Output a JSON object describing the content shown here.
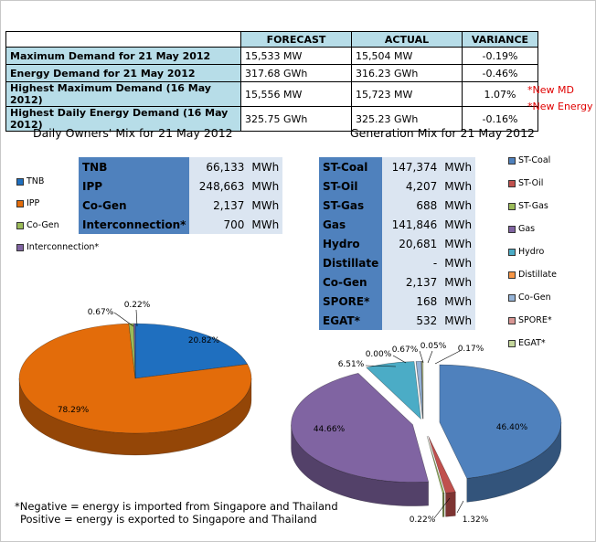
{
  "summary": {
    "headers": [
      "",
      "FORECAST",
      "ACTUAL",
      "VARIANCE"
    ],
    "rows": [
      {
        "label": "Maximum Demand for 21 May 2012",
        "forecast": "15,533  MW",
        "actual": "15,504  MW",
        "variance": "-0.19%",
        "note": ""
      },
      {
        "label": "Energy Demand for 21 May 2012",
        "forecast": "317.68  GWh",
        "actual": "316.23  GWh",
        "variance": "-0.46%",
        "note": ""
      },
      {
        "label": "Highest Maximum Demand (16 May 2012)",
        "forecast": "15,556  MW",
        "actual": "15,723  MW",
        "variance": "1.07%",
        "note": "*New MD"
      },
      {
        "label": "Highest Daily Energy Demand (16 May 2012)",
        "forecast": "325.75  GWh",
        "actual": "325.23  GWh",
        "variance": "-0.16%",
        "note": "*New Energy"
      }
    ]
  },
  "chart_data": [
    {
      "type": "pie",
      "title": "Daily Owners' Mix for 21 May 2012",
      "table": [
        {
          "name": "TNB",
          "value": "66,133",
          "unit": "MWh"
        },
        {
          "name": "IPP",
          "value": "248,663",
          "unit": "MWh"
        },
        {
          "name": "Co-Gen",
          "value": "2,137",
          "unit": "MWh"
        },
        {
          "name": "Interconnection*",
          "value": "700",
          "unit": "MWh"
        }
      ],
      "legend": [
        "TNB",
        "IPP",
        "Co-Gen",
        "Interconnection*"
      ],
      "colors": [
        "#1f6fbf",
        "#e36c0a",
        "#9bbb59",
        "#8064a2"
      ],
      "slices": [
        {
          "name": "TNB",
          "value": 20.82,
          "label": "20.82%"
        },
        {
          "name": "IPP",
          "value": 78.29,
          "label": "78.29%"
        },
        {
          "name": "Co-Gen",
          "value": 0.67,
          "label": "0.67%"
        },
        {
          "name": "Interconnection*",
          "value": 0.22,
          "label": "0.22%"
        }
      ]
    },
    {
      "type": "pie",
      "title": "Generation Mix for 21 May 2012",
      "table": [
        {
          "name": "ST-Coal",
          "value": "147,374",
          "unit": "MWh"
        },
        {
          "name": "ST-Oil",
          "value": "4,207",
          "unit": "MWh"
        },
        {
          "name": "ST-Gas",
          "value": "688",
          "unit": "MWh"
        },
        {
          "name": "Gas",
          "value": "141,846",
          "unit": "MWh"
        },
        {
          "name": "Hydro",
          "value": "20,681",
          "unit": "MWh"
        },
        {
          "name": "Distillate",
          "value": "-",
          "unit": "MWh"
        },
        {
          "name": "Co-Gen",
          "value": "2,137",
          "unit": "MWh"
        },
        {
          "name": "SPORE*",
          "value": "168",
          "unit": "MWh"
        },
        {
          "name": "EGAT*",
          "value": "532",
          "unit": "MWh"
        }
      ],
      "legend": [
        "ST-Coal",
        "ST-Oil",
        "ST-Gas",
        "Gas",
        "Hydro",
        "Distillate",
        "Co-Gen",
        "SPORE*",
        "EGAT*"
      ],
      "colors": [
        "#4f81bd",
        "#c0504d",
        "#9bbb59",
        "#8064a2",
        "#4bacc6",
        "#f79646",
        "#95b3d7",
        "#d99694",
        "#c3d69b"
      ],
      "slices": [
        {
          "name": "ST-Coal",
          "value": 46.4,
          "label": "46.40%"
        },
        {
          "name": "ST-Oil",
          "value": 1.32,
          "label": "1.32%"
        },
        {
          "name": "ST-Gas",
          "value": 0.22,
          "label": "0.22%"
        },
        {
          "name": "Gas",
          "value": 44.66,
          "label": "44.66%"
        },
        {
          "name": "Hydro",
          "value": 6.51,
          "label": "6.51%"
        },
        {
          "name": "Distillate",
          "value": 0.0,
          "label": "0.00%"
        },
        {
          "name": "Co-Gen",
          "value": 0.67,
          "label": "0.67%"
        },
        {
          "name": "SPORE*",
          "value": 0.05,
          "label": "0.05%"
        },
        {
          "name": "EGAT*",
          "value": 0.17,
          "label": "0.17%"
        }
      ]
    }
  ],
  "footnote": {
    "line1": "*Negative = energy is imported from Singapore and Thailand",
    "line2": "Positive = energy is exported to Singapore and Thailand"
  }
}
